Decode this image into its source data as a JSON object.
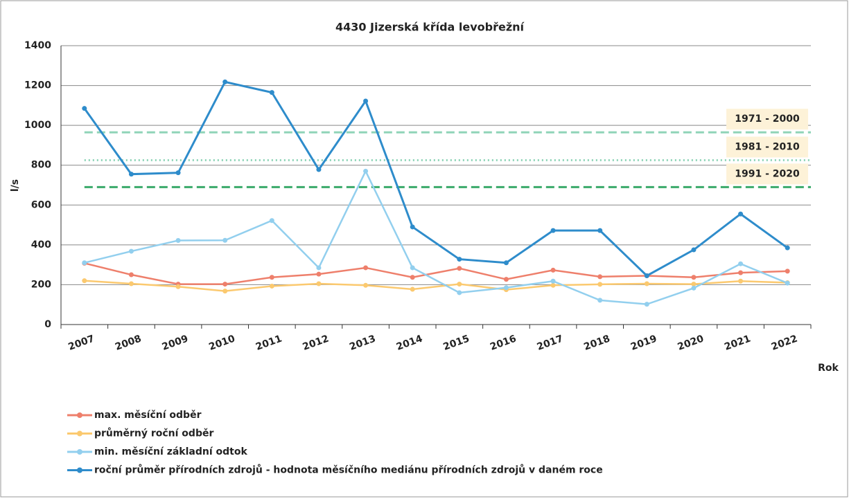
{
  "chart_data": {
    "type": "line",
    "title": "4430 Jizerská křída levobřežní",
    "y_label": "l/s",
    "x_label": "Rok",
    "categories": [
      "2007",
      "2008",
      "2009",
      "2010",
      "2011",
      "2012",
      "2013",
      "2014",
      "2015",
      "2016",
      "2017",
      "2018",
      "2019",
      "2020",
      "2021",
      "2022"
    ],
    "series": [
      {
        "name": "max. měsíční odběr",
        "color": "#ee7f6b",
        "values": [
          308,
          250,
          203,
          203,
          237,
          253,
          285,
          237,
          282,
          227,
          273,
          240,
          245,
          237,
          260,
          268
        ]
      },
      {
        "name": "průměrný roční odběr",
        "color": "#fbc96f",
        "values": [
          220,
          205,
          190,
          168,
          193,
          205,
          197,
          177,
          203,
          175,
          197,
          202,
          205,
          203,
          218,
          210
        ]
      },
      {
        "name": "min. měsíční základní odtok",
        "color": "#92cfee",
        "values": [
          310,
          368,
          422,
          423,
          522,
          285,
          770,
          285,
          160,
          185,
          218,
          122,
          102,
          183,
          305,
          208
        ]
      },
      {
        "name": "roční průměr přírodních zdrojů - hodnota měsíčního mediánu přírodních zdrojů v daném roce",
        "color": "#2e8ccb",
        "values": [
          1085,
          755,
          762,
          1218,
          1165,
          778,
          1122,
          490,
          328,
          310,
          472,
          472,
          245,
          375,
          555,
          385
        ]
      }
    ],
    "reference_lines": [
      {
        "label": "1971 - 2000",
        "value": 965,
        "color": "#8fd4b8",
        "style": "dashed"
      },
      {
        "label": "1981 - 2010",
        "value": 825,
        "color": "#8fd4b8",
        "style": "dotted"
      },
      {
        "label": "1991 - 2020",
        "value": 690,
        "color": "#3aaa6a",
        "style": "dashed"
      }
    ],
    "ylim": [
      0,
      1400
    ],
    "yticks": [
      0,
      200,
      400,
      600,
      800,
      1000,
      1200,
      1400
    ],
    "grid": true,
    "legend": "bottom-left"
  }
}
